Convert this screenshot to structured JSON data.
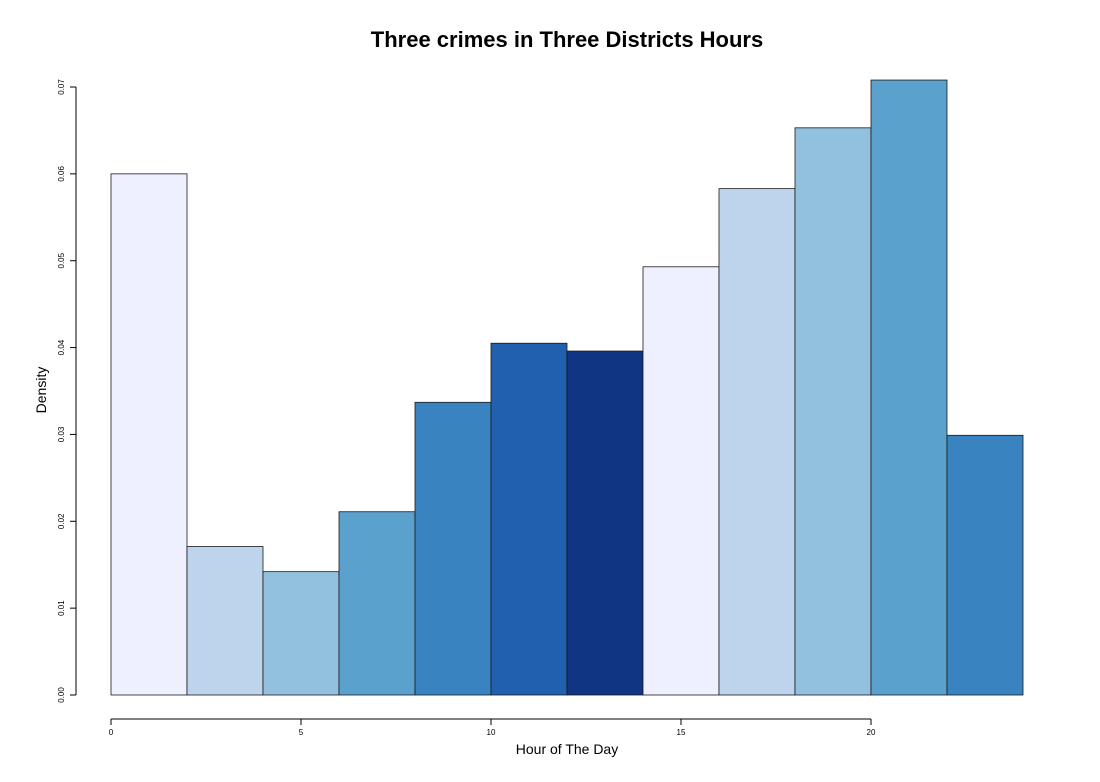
{
  "chart_data": {
    "type": "bar",
    "title": "Three crimes in Three Districts Hours",
    "xlabel": "Hour of The Day",
    "ylabel": "Density",
    "xlim": [
      0,
      24
    ],
    "ylim": [
      0,
      0.07
    ],
    "x_ticks": [
      0,
      5,
      10,
      15,
      20
    ],
    "x_tick_labels": [
      "0",
      "5",
      "10",
      "15",
      "20"
    ],
    "y_ticks": [
      0,
      0.01,
      0.02,
      0.03,
      0.04,
      0.05,
      0.06,
      0.07
    ],
    "y_tick_labels": [
      "0.00",
      "0.01",
      "0.02",
      "0.03",
      "0.04",
      "0.05",
      "0.06",
      "0.07"
    ],
    "grid": false,
    "bins": [
      {
        "x0": 0,
        "x1": 2,
        "value": 0.06,
        "color": "#eef0ff"
      },
      {
        "x0": 2,
        "x1": 4,
        "value": 0.0171,
        "color": "#bdd4ec"
      },
      {
        "x0": 4,
        "x1": 6,
        "value": 0.0142,
        "color": "#92c1df"
      },
      {
        "x0": 6,
        "x1": 8,
        "value": 0.0211,
        "color": "#5ba1ce"
      },
      {
        "x0": 8,
        "x1": 10,
        "value": 0.0337,
        "color": "#3883c0"
      },
      {
        "x0": 10,
        "x1": 12,
        "value": 0.0405,
        "color": "#2060ae"
      },
      {
        "x0": 12,
        "x1": 14,
        "value": 0.0396,
        "color": "#0f3583"
      },
      {
        "x0": 14,
        "x1": 16,
        "value": 0.0493,
        "color": "#eef0ff"
      },
      {
        "x0": 16,
        "x1": 18,
        "value": 0.0583,
        "color": "#bdd4ec"
      },
      {
        "x0": 18,
        "x1": 20,
        "value": 0.0653,
        "color": "#92c1df"
      },
      {
        "x0": 20,
        "x1": 22,
        "value": 0.0708,
        "color": "#5ba1ce"
      },
      {
        "x0": 22,
        "x1": 24,
        "value": 0.0299,
        "color": "#3883c0"
      }
    ]
  }
}
